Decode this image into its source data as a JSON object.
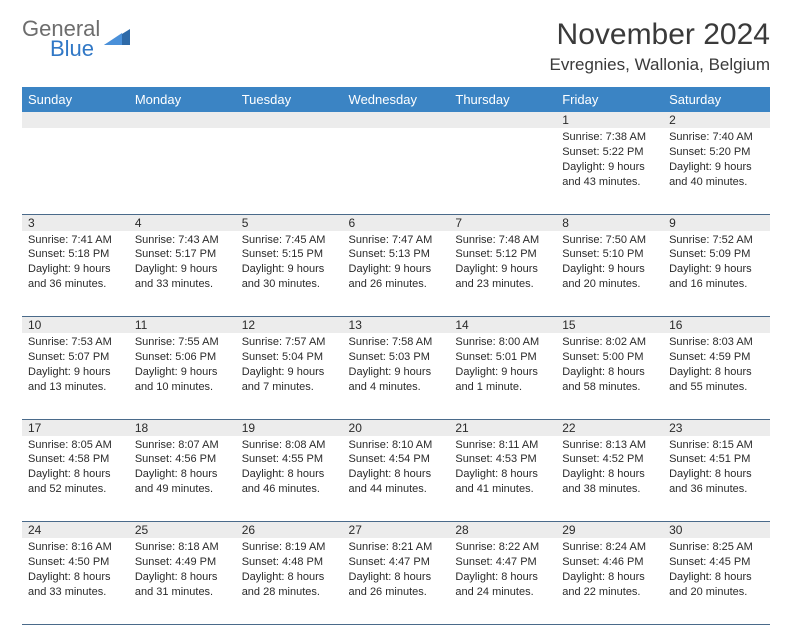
{
  "logo": {
    "word1": "General",
    "word2": "Blue"
  },
  "title": "November 2024",
  "location": "Evregnies, Wallonia, Belgium",
  "colors": {
    "header_bg": "#3b84c4",
    "header_text": "#ffffff",
    "daynum_bg": "#ececec",
    "border": "#4a6a8a",
    "logo_gray": "#6d6d6d",
    "logo_blue": "#3178c6"
  },
  "day_headers": [
    "Sunday",
    "Monday",
    "Tuesday",
    "Wednesday",
    "Thursday",
    "Friday",
    "Saturday"
  ],
  "weeks": [
    {
      "nums": [
        "",
        "",
        "",
        "",
        "",
        "1",
        "2"
      ],
      "cells": [
        null,
        null,
        null,
        null,
        null,
        {
          "sunrise": "Sunrise: 7:38 AM",
          "sunset": "Sunset: 5:22 PM",
          "day1": "Daylight: 9 hours",
          "day2": "and 43 minutes."
        },
        {
          "sunrise": "Sunrise: 7:40 AM",
          "sunset": "Sunset: 5:20 PM",
          "day1": "Daylight: 9 hours",
          "day2": "and 40 minutes."
        }
      ]
    },
    {
      "nums": [
        "3",
        "4",
        "5",
        "6",
        "7",
        "8",
        "9"
      ],
      "cells": [
        {
          "sunrise": "Sunrise: 7:41 AM",
          "sunset": "Sunset: 5:18 PM",
          "day1": "Daylight: 9 hours",
          "day2": "and 36 minutes."
        },
        {
          "sunrise": "Sunrise: 7:43 AM",
          "sunset": "Sunset: 5:17 PM",
          "day1": "Daylight: 9 hours",
          "day2": "and 33 minutes."
        },
        {
          "sunrise": "Sunrise: 7:45 AM",
          "sunset": "Sunset: 5:15 PM",
          "day1": "Daylight: 9 hours",
          "day2": "and 30 minutes."
        },
        {
          "sunrise": "Sunrise: 7:47 AM",
          "sunset": "Sunset: 5:13 PM",
          "day1": "Daylight: 9 hours",
          "day2": "and 26 minutes."
        },
        {
          "sunrise": "Sunrise: 7:48 AM",
          "sunset": "Sunset: 5:12 PM",
          "day1": "Daylight: 9 hours",
          "day2": "and 23 minutes."
        },
        {
          "sunrise": "Sunrise: 7:50 AM",
          "sunset": "Sunset: 5:10 PM",
          "day1": "Daylight: 9 hours",
          "day2": "and 20 minutes."
        },
        {
          "sunrise": "Sunrise: 7:52 AM",
          "sunset": "Sunset: 5:09 PM",
          "day1": "Daylight: 9 hours",
          "day2": "and 16 minutes."
        }
      ]
    },
    {
      "nums": [
        "10",
        "11",
        "12",
        "13",
        "14",
        "15",
        "16"
      ],
      "cells": [
        {
          "sunrise": "Sunrise: 7:53 AM",
          "sunset": "Sunset: 5:07 PM",
          "day1": "Daylight: 9 hours",
          "day2": "and 13 minutes."
        },
        {
          "sunrise": "Sunrise: 7:55 AM",
          "sunset": "Sunset: 5:06 PM",
          "day1": "Daylight: 9 hours",
          "day2": "and 10 minutes."
        },
        {
          "sunrise": "Sunrise: 7:57 AM",
          "sunset": "Sunset: 5:04 PM",
          "day1": "Daylight: 9 hours",
          "day2": "and 7 minutes."
        },
        {
          "sunrise": "Sunrise: 7:58 AM",
          "sunset": "Sunset: 5:03 PM",
          "day1": "Daylight: 9 hours",
          "day2": "and 4 minutes."
        },
        {
          "sunrise": "Sunrise: 8:00 AM",
          "sunset": "Sunset: 5:01 PM",
          "day1": "Daylight: 9 hours",
          "day2": "and 1 minute."
        },
        {
          "sunrise": "Sunrise: 8:02 AM",
          "sunset": "Sunset: 5:00 PM",
          "day1": "Daylight: 8 hours",
          "day2": "and 58 minutes."
        },
        {
          "sunrise": "Sunrise: 8:03 AM",
          "sunset": "Sunset: 4:59 PM",
          "day1": "Daylight: 8 hours",
          "day2": "and 55 minutes."
        }
      ]
    },
    {
      "nums": [
        "17",
        "18",
        "19",
        "20",
        "21",
        "22",
        "23"
      ],
      "cells": [
        {
          "sunrise": "Sunrise: 8:05 AM",
          "sunset": "Sunset: 4:58 PM",
          "day1": "Daylight: 8 hours",
          "day2": "and 52 minutes."
        },
        {
          "sunrise": "Sunrise: 8:07 AM",
          "sunset": "Sunset: 4:56 PM",
          "day1": "Daylight: 8 hours",
          "day2": "and 49 minutes."
        },
        {
          "sunrise": "Sunrise: 8:08 AM",
          "sunset": "Sunset: 4:55 PM",
          "day1": "Daylight: 8 hours",
          "day2": "and 46 minutes."
        },
        {
          "sunrise": "Sunrise: 8:10 AM",
          "sunset": "Sunset: 4:54 PM",
          "day1": "Daylight: 8 hours",
          "day2": "and 44 minutes."
        },
        {
          "sunrise": "Sunrise: 8:11 AM",
          "sunset": "Sunset: 4:53 PM",
          "day1": "Daylight: 8 hours",
          "day2": "and 41 minutes."
        },
        {
          "sunrise": "Sunrise: 8:13 AM",
          "sunset": "Sunset: 4:52 PM",
          "day1": "Daylight: 8 hours",
          "day2": "and 38 minutes."
        },
        {
          "sunrise": "Sunrise: 8:15 AM",
          "sunset": "Sunset: 4:51 PM",
          "day1": "Daylight: 8 hours",
          "day2": "and 36 minutes."
        }
      ]
    },
    {
      "nums": [
        "24",
        "25",
        "26",
        "27",
        "28",
        "29",
        "30"
      ],
      "cells": [
        {
          "sunrise": "Sunrise: 8:16 AM",
          "sunset": "Sunset: 4:50 PM",
          "day1": "Daylight: 8 hours",
          "day2": "and 33 minutes."
        },
        {
          "sunrise": "Sunrise: 8:18 AM",
          "sunset": "Sunset: 4:49 PM",
          "day1": "Daylight: 8 hours",
          "day2": "and 31 minutes."
        },
        {
          "sunrise": "Sunrise: 8:19 AM",
          "sunset": "Sunset: 4:48 PM",
          "day1": "Daylight: 8 hours",
          "day2": "and 28 minutes."
        },
        {
          "sunrise": "Sunrise: 8:21 AM",
          "sunset": "Sunset: 4:47 PM",
          "day1": "Daylight: 8 hours",
          "day2": "and 26 minutes."
        },
        {
          "sunrise": "Sunrise: 8:22 AM",
          "sunset": "Sunset: 4:47 PM",
          "day1": "Daylight: 8 hours",
          "day2": "and 24 minutes."
        },
        {
          "sunrise": "Sunrise: 8:24 AM",
          "sunset": "Sunset: 4:46 PM",
          "day1": "Daylight: 8 hours",
          "day2": "and 22 minutes."
        },
        {
          "sunrise": "Sunrise: 8:25 AM",
          "sunset": "Sunset: 4:45 PM",
          "day1": "Daylight: 8 hours",
          "day2": "and 20 minutes."
        }
      ]
    }
  ]
}
